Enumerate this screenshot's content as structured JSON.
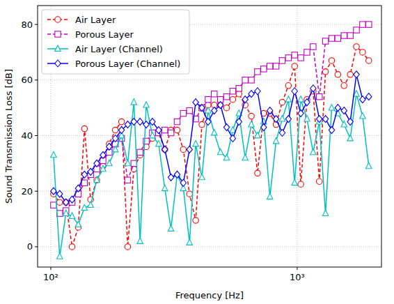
{
  "chart_data": {
    "type": "line",
    "x_label": "Frequency [Hz]",
    "y_label": "Sound Transmission Loss [dB]",
    "log": "x",
    "grid": true,
    "legend": "upper left",
    "xlim": [
      88.4,
      2198
    ],
    "ylim": [
      -7.3,
      86.8
    ],
    "xticks": [
      {
        "value": 100,
        "label": "10²"
      },
      {
        "value": 1000,
        "label": "10³"
      }
    ],
    "yticks": [
      0,
      20,
      40,
      60,
      80
    ],
    "x": [
      102.6,
      108.7,
      115.2,
      122.0,
      129.3,
      137.0,
      145.1,
      153.7,
      162.9,
      172.6,
      182.8,
      193.7,
      205.2,
      217.4,
      230.3,
      244.0,
      258.5,
      273.9,
      290.2,
      307.4,
      325.7,
      345.1,
      365.6,
      387.3,
      410.4,
      434.8,
      460.7,
      488.0,
      517.1,
      547.8,
      580.4,
      614.9,
      651.5,
      690.2,
      731.3,
      774.7,
      820.8,
      869.6,
      921.3,
      976.1,
      1034.1,
      1095.6,
      1160.8,
      1229.8,
      1302.9,
      1380.4,
      1462.5,
      1549.4,
      1641.6,
      1739.2,
      1842.6,
      1952.2
    ],
    "series": [
      {
        "name": "Air Layer",
        "color": "#ff0000",
        "marker": "circle",
        "line_style": "dashed",
        "values": [
          19,
          16,
          16,
          0,
          7,
          42.5,
          17,
          24,
          29,
          37,
          42,
          45,
          0,
          28,
          33,
          36,
          39,
          41,
          35,
          42,
          42,
          35,
          19,
          9.5,
          44,
          51,
          51,
          51,
          50,
          53,
          55,
          51,
          47,
          26.5,
          48,
          48,
          44,
          52,
          58,
          65,
          22.5,
          53,
          56,
          23.5,
          63,
          67,
          62,
          58,
          62,
          72,
          70,
          67
        ]
      },
      {
        "name": "Porous Layer",
        "color": "#bf00bf",
        "marker": "square",
        "line_style": "dashed",
        "values": [
          15,
          12,
          13,
          16,
          19,
          23,
          26,
          28,
          31,
          34,
          37,
          39,
          24,
          30,
          34,
          38,
          41,
          41,
          42,
          41,
          45,
          48,
          49,
          46,
          50,
          53,
          55,
          53,
          54,
          56,
          57,
          60,
          60,
          63,
          64,
          65,
          65,
          67,
          68,
          69,
          68,
          70,
          72,
          54,
          74,
          75,
          75,
          76,
          76,
          78,
          80,
          80
        ]
      },
      {
        "name": "Air Layer (Channel)",
        "color": "#00bfbf",
        "marker": "triangle",
        "line_style": "solid",
        "values": [
          33,
          -3.5,
          12,
          11,
          8,
          14,
          15,
          24,
          28,
          30,
          35,
          40,
          30,
          52,
          2,
          51,
          40,
          37,
          21,
          6.5,
          26,
          21,
          1.5,
          37,
          25,
          49,
          41,
          34,
          32,
          42,
          48,
          32,
          44,
          40,
          45,
          18,
          38,
          46,
          53,
          23,
          53,
          46,
          34,
          45,
          12,
          50,
          48,
          44,
          39,
          55,
          47,
          29
        ]
      },
      {
        "name": "Porous Layer (Channel)",
        "color": "#0000ff",
        "marker": "diamond",
        "line_style": "solid",
        "values": [
          20,
          19,
          16,
          17,
          21,
          26,
          27,
          30,
          33,
          36,
          39,
          42,
          44,
          45,
          45,
          44,
          45,
          42,
          35,
          25,
          26,
          23,
          35,
          52,
          50,
          45,
          49,
          51,
          43,
          39,
          45,
          53,
          55,
          56,
          43,
          49,
          46,
          41,
          46,
          56,
          48,
          52,
          57,
          46,
          46,
          42,
          50,
          49,
          45,
          62,
          53,
          54
        ]
      }
    ]
  }
}
